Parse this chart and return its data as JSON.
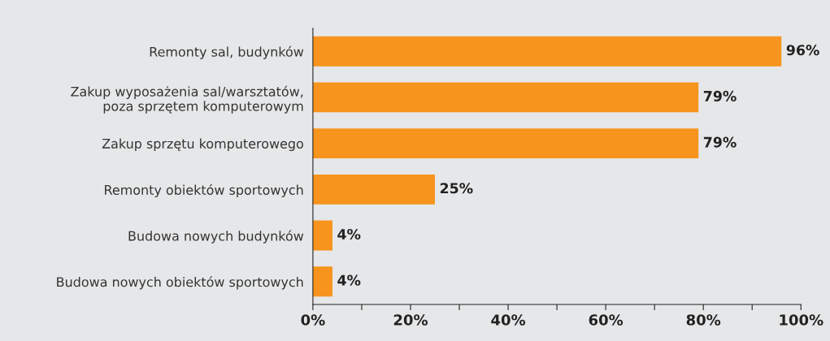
{
  "chart_data": {
    "type": "bar",
    "orientation": "horizontal",
    "categories": [
      "Remonty sal, budynków",
      "Zakup wyposażenia sal/warsztatów,\npoza sprzętem komputerowym",
      "Zakup sprzętu komputerowego",
      "Remonty obiektów sportowych",
      "Budowa nowych budynków",
      "Budowa nowych obiektów sportowych"
    ],
    "values": [
      96,
      79,
      79,
      25,
      4,
      4
    ],
    "value_labels": [
      "96%",
      "79%",
      "79%",
      "25%",
      "4%",
      "4%"
    ],
    "color": "#f7941d",
    "xlim": [
      0,
      100
    ],
    "xticks": [
      {
        "value": 0,
        "label": "0%"
      },
      {
        "value": 10,
        "label": null
      },
      {
        "value": 20,
        "label": "20%"
      },
      {
        "value": 30,
        "label": null
      },
      {
        "value": 40,
        "label": "40%"
      },
      {
        "value": 50,
        "label": null
      },
      {
        "value": 60,
        "label": "60%"
      },
      {
        "value": 70,
        "label": null
      },
      {
        "value": 80,
        "label": "80%"
      },
      {
        "value": 90,
        "label": null
      },
      {
        "value": 100,
        "label": "100%"
      }
    ],
    "grid": false,
    "legend": false
  }
}
